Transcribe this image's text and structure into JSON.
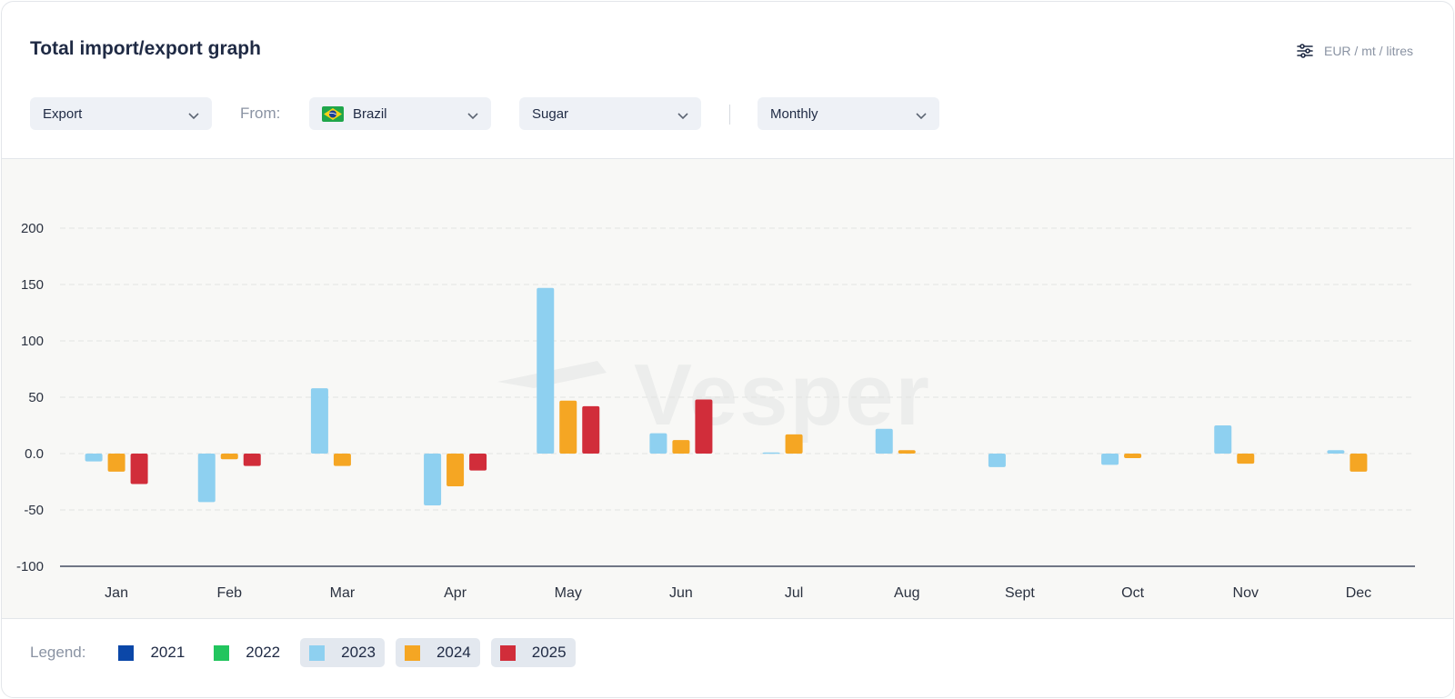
{
  "header": {
    "title": "Total import/export graph",
    "units_label": "EUR / mt / litres",
    "units_icon": "sliders-icon"
  },
  "controls": {
    "flow": {
      "value": "Export"
    },
    "from_label": "From:",
    "country": {
      "value": "Brazil",
      "flag_icon": "brazil-flag-icon"
    },
    "commodity": {
      "value": "Sugar"
    },
    "period": {
      "value": "Monthly"
    }
  },
  "watermark": {
    "text": "Vesper"
  },
  "legend": {
    "label": "Legend:",
    "items": [
      {
        "label": "2021",
        "color": "#0b47a8",
        "active": false
      },
      {
        "label": "2022",
        "color": "#22c55e",
        "active": false
      },
      {
        "label": "2023",
        "color": "#8ed0f0",
        "active": true
      },
      {
        "label": "2024",
        "color": "#f5a623",
        "active": true
      },
      {
        "label": "2025",
        "color": "#d12d3a",
        "active": true
      }
    ]
  },
  "chart_data": {
    "type": "bar",
    "categories": [
      "Jan",
      "Feb",
      "Mar",
      "Apr",
      "May",
      "Jun",
      "Jul",
      "Aug",
      "Sept",
      "Oct",
      "Nov",
      "Dec"
    ],
    "series": [
      {
        "name": "2023",
        "color": "#8ed0f0",
        "values": [
          -7,
          -43,
          58,
          -46,
          147,
          18,
          1,
          22,
          -12,
          -10,
          25,
          3
        ]
      },
      {
        "name": "2024",
        "color": "#f5a623",
        "values": [
          -16,
          -5,
          -11,
          -29,
          47,
          12,
          17,
          3,
          null,
          -4,
          -9,
          -16
        ]
      },
      {
        "name": "2025",
        "color": "#d12d3a",
        "values": [
          -27,
          -11,
          null,
          -15,
          42,
          48,
          null,
          null,
          null,
          null,
          null,
          null
        ]
      }
    ],
    "yticks": [
      "200",
      "150",
      "100",
      "50",
      "0.0",
      "-50",
      "-100"
    ],
    "ytick_values": [
      200,
      150,
      100,
      50,
      0,
      -50,
      -100
    ],
    "ylim": [
      -100,
      200
    ],
    "grid": true,
    "title": "Total import/export graph"
  }
}
